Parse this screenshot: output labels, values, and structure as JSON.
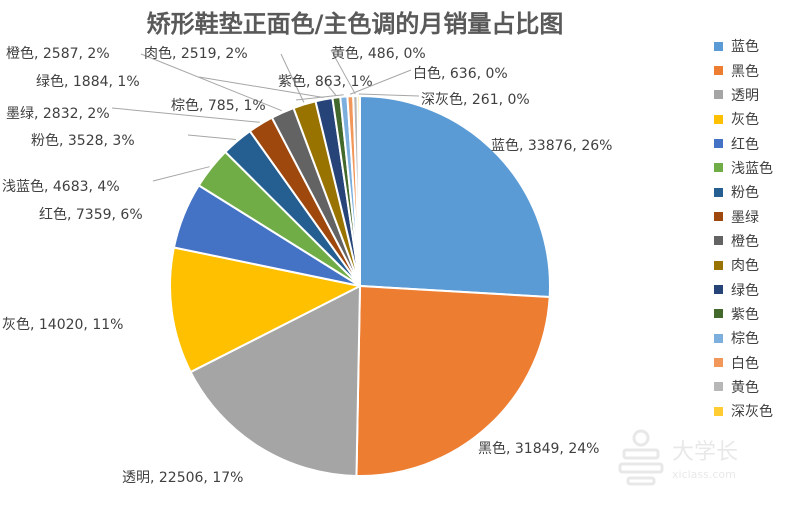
{
  "chart_data": {
    "type": "pie",
    "title": "矫形鞋垫正面色/主色调的月销量占比图",
    "slices": [
      {
        "name": "蓝色",
        "value": 33876,
        "percent": "26%",
        "color": "#5B9BD5",
        "label": "蓝色, 33876, 26%"
      },
      {
        "name": "黑色",
        "value": 31849,
        "percent": "24%",
        "color": "#ED7D31",
        "label": "黑色, 31849, 24%"
      },
      {
        "name": "透明",
        "value": 22506,
        "percent": "17%",
        "color": "#A5A5A5",
        "label": "透明, 22506, 17%"
      },
      {
        "name": "灰色",
        "value": 14020,
        "percent": "11%",
        "color": "#FFC000",
        "label": "灰色, 14020, 11%"
      },
      {
        "name": "红色",
        "value": 7359,
        "percent": "6%",
        "color": "#4472C4",
        "label": "红色, 7359, 6%"
      },
      {
        "name": "浅蓝色",
        "value": 4683,
        "percent": "4%",
        "color": "#70AD47",
        "label": "浅蓝色, 4683, 4%"
      },
      {
        "name": "粉色",
        "value": 3528,
        "percent": "3%",
        "color": "#255E91",
        "label": "粉色, 3528, 3%"
      },
      {
        "name": "墨绿",
        "value": 2832,
        "percent": "2%",
        "color": "#9E480E",
        "label": "墨绿, 2832, 2%"
      },
      {
        "name": "橙色",
        "value": 2587,
        "percent": "2%",
        "color": "#636363",
        "label": "橙色, 2587, 2%"
      },
      {
        "name": "肉色",
        "value": 2519,
        "percent": "2%",
        "color": "#997300",
        "label": "肉色, 2519, 2%"
      },
      {
        "name": "绿色",
        "value": 1884,
        "percent": "1%",
        "color": "#264478",
        "label": "绿色, 1884, 1%"
      },
      {
        "name": "紫色",
        "value": 863,
        "percent": "1%",
        "color": "#43682B",
        "label": "紫色, 863, 1%"
      },
      {
        "name": "棕色",
        "value": 785,
        "percent": "1%",
        "color": "#7CAFDD",
        "label": "棕色, 785, 1%"
      },
      {
        "name": "白色",
        "value": 636,
        "percent": "0%",
        "color": "#F1975A",
        "label": "白色, 636, 0%"
      },
      {
        "name": "黄色",
        "value": 486,
        "percent": "0%",
        "color": "#B7B7B7",
        "label": "黄色, 486, 0%"
      },
      {
        "name": "深灰色",
        "value": 261,
        "percent": "0%",
        "color": "#FFCD33",
        "label": "深灰色, 261, 0%"
      }
    ],
    "legend_position": "right"
  },
  "watermark": {
    "text": "大学长",
    "subtext": "xiclass.com"
  }
}
